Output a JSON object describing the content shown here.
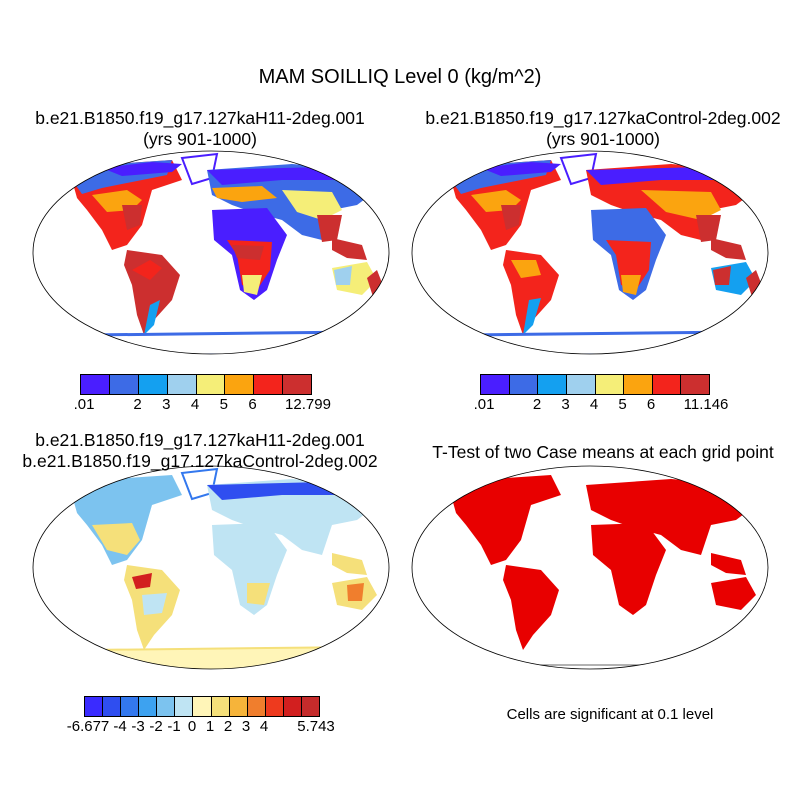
{
  "title": "MAM SOILLIQ Level 0 (kg/m^2)",
  "panels": [
    {
      "title_line1": "b.e21.B1850.f19_g17.127kaH11-2deg.001",
      "title_line2": "(yrs 901-1000)",
      "colorbar": {
        "colors": [
          "#4a1eff",
          "#3d6be6",
          "#14a0f0",
          "#9fd0ee",
          "#f5ee78",
          "#fba40f",
          "#f3241c",
          "#cc2f2f"
        ],
        "labels": [
          ".01",
          "2",
          "3",
          "4",
          "5",
          "6",
          "12.799"
        ]
      }
    },
    {
      "title_line1": "b.e21.B1850.f19_g17.127kaControl-2deg.002",
      "title_line2": "(yrs 901-1000)",
      "colorbar": {
        "colors": [
          "#4a1eff",
          "#3d6be6",
          "#14a0f0",
          "#9fd0ee",
          "#f5ee78",
          "#fba40f",
          "#f3241c",
          "#cc2f2f"
        ],
        "labels": [
          ".01",
          "2",
          "3",
          "4",
          "5",
          "6",
          "11.146"
        ]
      }
    },
    {
      "title_line1": "b.e21.B1850.f19_g17.127kaH11-2deg.001",
      "title_line2": "b.e21.B1850.f19_g17.127kaControl-2deg.002",
      "colorbar": {
        "colors": [
          "#3a2bff",
          "#2f4ef0",
          "#3378ee",
          "#3da2f0",
          "#7cc3ef",
          "#bfe4f3",
          "#fff5b8",
          "#f5e07a",
          "#f6b43a",
          "#f07e2d",
          "#ee3a1e",
          "#d21f1f",
          "#c52b2b"
        ],
        "labels": [
          "-6.677",
          "-4",
          "-3",
          "-2",
          "-1",
          "0",
          "1",
          "2",
          "3",
          "4",
          "5.743"
        ]
      }
    },
    {
      "title_line1": "T-Test of two Case means at each grid point",
      "note": "Cells are significant at 0.1 level"
    }
  ]
}
